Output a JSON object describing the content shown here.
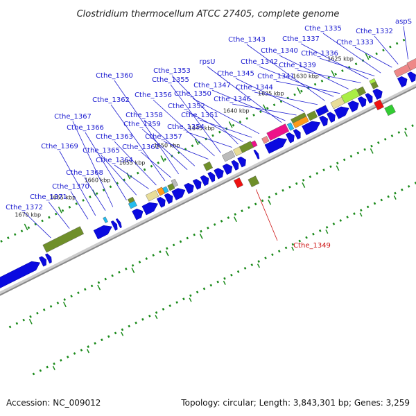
{
  "title": "Clostridium thermocellum ATCC 27405, complete genome",
  "footer": {
    "accession": "Accession: NC_009012",
    "summary": "Topology: circular; Length: 3,843,301 bp; Genes: 3,259"
  },
  "colors": {
    "cds_forward": "#0a0ae0",
    "label_blue": "#1a1ad0",
    "label_red": "#cc1010",
    "tick_green": "#1a8a1a",
    "olive": "#6f8f2a",
    "pink": "#ee1188",
    "orange": "#ff9a1a",
    "cyan": "#22bbee",
    "lime": "#aaee44",
    "khaki": "#e8dd99",
    "salmon": "#ee8888",
    "grey": "#bbbbbb",
    "red": "#ee1111",
    "bright_green": "#33cc33"
  },
  "scale_labels": [
    "1625 kbp",
    "1630 kbp",
    "1635 kbp",
    "1640 kbp",
    "1645 kbp",
    "1650 kbp",
    "1655 kbp",
    "1660 kbp",
    "1665 kbp",
    "1670 kbp"
  ],
  "gene_labels": [
    "aspS",
    "Cthe_1332",
    "Cthe_1333",
    "Cthe_1335",
    "Cthe_1336",
    "Cthe_1337",
    "Cthe_1339",
    "Cthe_1340",
    "Cthe_1341",
    "Cthe_1342",
    "Cthe_1343",
    "Cthe_1344",
    "Cthe_1345",
    "Cthe_1346",
    "Cthe_1347",
    "rpsU",
    "Cthe_1350",
    "Cthe_1351",
    "Cthe_1352",
    "Cthe_1353",
    "Cthe_1354",
    "Cthe_1355",
    "Cthe_1356",
    "Cthe_1357",
    "Cthe_1358",
    "Cthe_1359",
    "Cthe_1360",
    "Cthe_1361",
    "Cthe_1362",
    "Cthe_1363",
    "Cthe_1364",
    "Cthe_1365",
    "Cthe_1366",
    "Cthe_1367",
    "Cthe_1368",
    "Cthe_1369",
    "Cthe_1370",
    "Cthe_1371",
    "Cthe_1372",
    "Cthe_1349"
  ]
}
